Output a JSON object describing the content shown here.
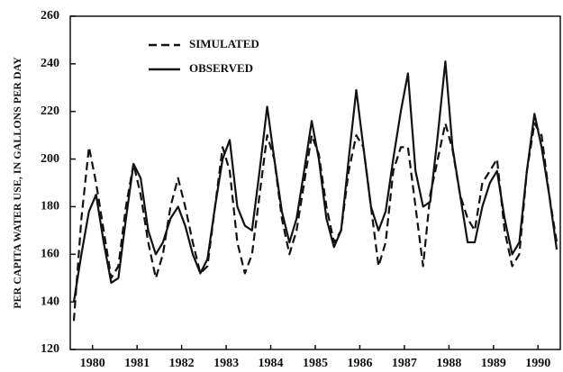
{
  "chart_data": {
    "type": "line",
    "y_label": "PER CAPITA WATER USE, IN GALLONS PER DAY",
    "x": [
      1980.08,
      1980.25,
      1980.42,
      1980.58,
      1980.75,
      1980.92,
      1981.08,
      1981.25,
      1981.42,
      1981.58,
      1981.75,
      1981.92,
      1982.08,
      1982.25,
      1982.42,
      1982.58,
      1982.75,
      1982.92,
      1983.08,
      1983.25,
      1983.42,
      1983.58,
      1983.75,
      1983.92,
      1984.08,
      1984.25,
      1984.42,
      1984.58,
      1984.75,
      1984.92,
      1985.08,
      1985.25,
      1985.42,
      1985.58,
      1985.75,
      1985.92,
      1986.08,
      1986.25,
      1986.42,
      1986.58,
      1986.75,
      1986.92,
      1987.08,
      1987.25,
      1987.42,
      1987.58,
      1987.75,
      1987.92,
      1988.08,
      1988.25,
      1988.42,
      1988.58,
      1988.75,
      1988.92,
      1989.08,
      1989.25,
      1989.42,
      1989.58,
      1989.75,
      1989.92,
      1990.08,
      1990.25,
      1990.42,
      1990.58,
      1990.75,
      1990.92
    ],
    "series": [
      {
        "name": "SIMULATED",
        "color": "#111111",
        "dashed": true,
        "values": [
          132,
          175,
          205,
          190,
          170,
          150,
          155,
          180,
          198,
          185,
          165,
          150,
          160,
          180,
          192,
          180,
          165,
          152,
          155,
          180,
          205,
          195,
          165,
          152,
          160,
          185,
          210,
          200,
          175,
          160,
          170,
          190,
          210,
          202,
          180,
          165,
          170,
          195,
          210,
          205,
          180,
          155,
          165,
          195,
          205,
          205,
          180,
          155,
          185,
          200,
          215,
          204,
          185,
          175,
          170,
          190,
          195,
          200,
          170,
          155,
          160,
          195,
          215,
          210,
          185,
          165
        ]
      },
      {
        "name": "OBSERVED",
        "color": "#111111",
        "dashed": false,
        "values": [
          140,
          160,
          178,
          185,
          165,
          148,
          150,
          175,
          198,
          192,
          170,
          160,
          165,
          175,
          180,
          172,
          160,
          152,
          158,
          180,
          200,
          208,
          180,
          172,
          170,
          195,
          222,
          200,
          178,
          165,
          175,
          195,
          216,
          200,
          175,
          163,
          170,
          200,
          229,
          205,
          180,
          170,
          178,
          200,
          220,
          236,
          195,
          180,
          182,
          210,
          241,
          205,
          185,
          165,
          165,
          180,
          190,
          195,
          175,
          160,
          165,
          195,
          219,
          205,
          185,
          162
        ]
      }
    ],
    "xlim": [
      1980,
      1991
    ],
    "xticks": [
      {
        "value": 1980.5,
        "label": "1980"
      },
      {
        "value": 1981.5,
        "label": "1981"
      },
      {
        "value": 1982.5,
        "label": "1982"
      },
      {
        "value": 1983.5,
        "label": "1983"
      },
      {
        "value": 1984.5,
        "label": "1984"
      },
      {
        "value": 1985.5,
        "label": "1985"
      },
      {
        "value": 1986.5,
        "label": "1986"
      },
      {
        "value": 1987.5,
        "label": "1987"
      },
      {
        "value": 1988.5,
        "label": "1988"
      },
      {
        "value": 1989.5,
        "label": "1989"
      },
      {
        "value": 1990.5,
        "label": "1990"
      }
    ],
    "ylim": [
      120,
      260
    ],
    "yticks": [
      120,
      140,
      160,
      180,
      200,
      220,
      240,
      260
    ]
  }
}
